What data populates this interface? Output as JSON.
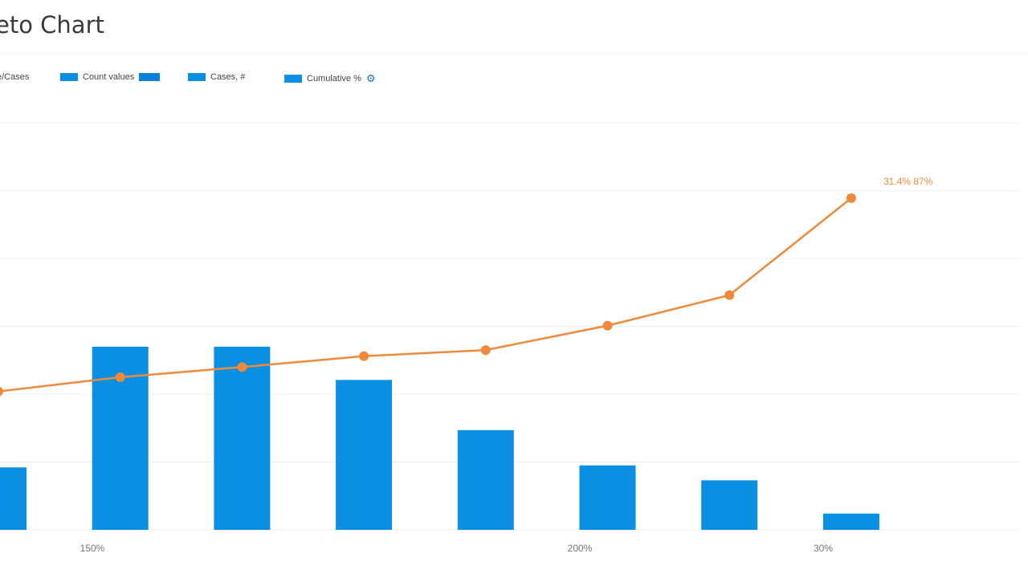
{
  "title": "eto Chart",
  "legend": [
    {
      "label": "e/Cases",
      "color": "#0a8fe3"
    },
    {
      "label": "Count values",
      "color": "#0a8fe3"
    },
    {
      "label": "Cases, #",
      "color": "#0a8fe3"
    },
    {
      "label": "Cumulative %",
      "color": "#0a8fe3"
    }
  ],
  "legend_icon": "settings-icon",
  "chart_data": {
    "type": "bar",
    "title": "eto Chart",
    "grid": true,
    "ylim": [
      0,
      60
    ],
    "bar_color": "#0a8fe3",
    "line_color": "#f08a3a",
    "series": [
      {
        "type": "bar",
        "values": [
          9.2,
          27,
          27,
          22.1,
          14.7,
          9.5,
          7.3,
          2.4
        ]
      },
      {
        "type": "line",
        "values": [
          20.4,
          22.5,
          24,
          25.6,
          26.5,
          30.1,
          34.6,
          48.9
        ]
      }
    ],
    "x_tick_labels": [
      "150%",
      "200%",
      "30%"
    ],
    "annotation": "31.4% 87%"
  }
}
